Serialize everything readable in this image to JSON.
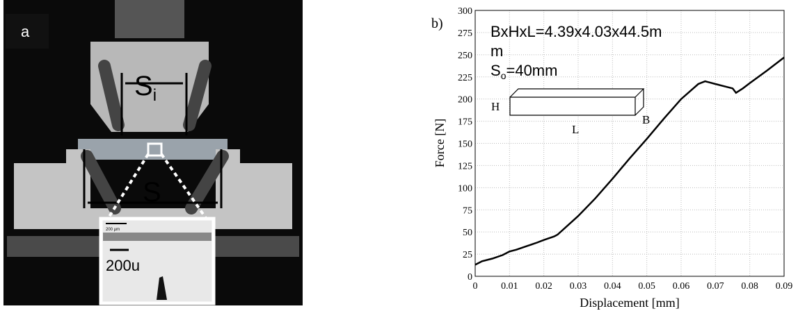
{
  "panel_a": {
    "label": "a",
    "si_base": "S",
    "si_sub": "i",
    "s": "S",
    "scale_small": "200 µm",
    "scale_large": "200u"
  },
  "chart_data": {
    "type": "line",
    "panel_label": "b)",
    "annotation": {
      "line1": "BxHxL=4.39x4.03x44.5m",
      "line2": "m",
      "so_base": "S",
      "so_sub": "o",
      "so_rest": "=40mm"
    },
    "specimen": {
      "h": "H",
      "l": "L",
      "b": "B"
    },
    "x_label": "Displacement [mm]",
    "y_label": "Force [N]",
    "x": [
      0,
      0.002,
      0.005,
      0.008,
      0.01,
      0.012,
      0.015,
      0.018,
      0.02,
      0.023,
      0.024,
      0.03,
      0.035,
      0.04,
      0.045,
      0.05,
      0.055,
      0.06,
      0.065,
      0.067,
      0.07,
      0.073,
      0.075,
      0.076,
      0.078,
      0.08,
      0.085,
      0.09
    ],
    "series": [
      {
        "color": "#000000",
        "values": [
          13,
          17,
          20,
          24,
          28,
          30,
          34,
          38,
          41,
          45,
          47,
          68,
          88,
          110,
          133,
          155,
          178,
          200,
          217,
          220,
          217,
          214,
          212,
          207,
          212,
          218,
          232,
          247
        ]
      }
    ],
    "xlim": [
      0,
      0.09
    ],
    "ylim": [
      0,
      300
    ],
    "xticks": [
      0,
      0.01,
      0.02,
      0.03,
      0.04,
      0.05,
      0.06,
      0.07,
      0.08,
      0.09
    ],
    "yticks": [
      0,
      25,
      50,
      75,
      100,
      125,
      150,
      175,
      200,
      225,
      250,
      275,
      300
    ],
    "grid": true
  }
}
